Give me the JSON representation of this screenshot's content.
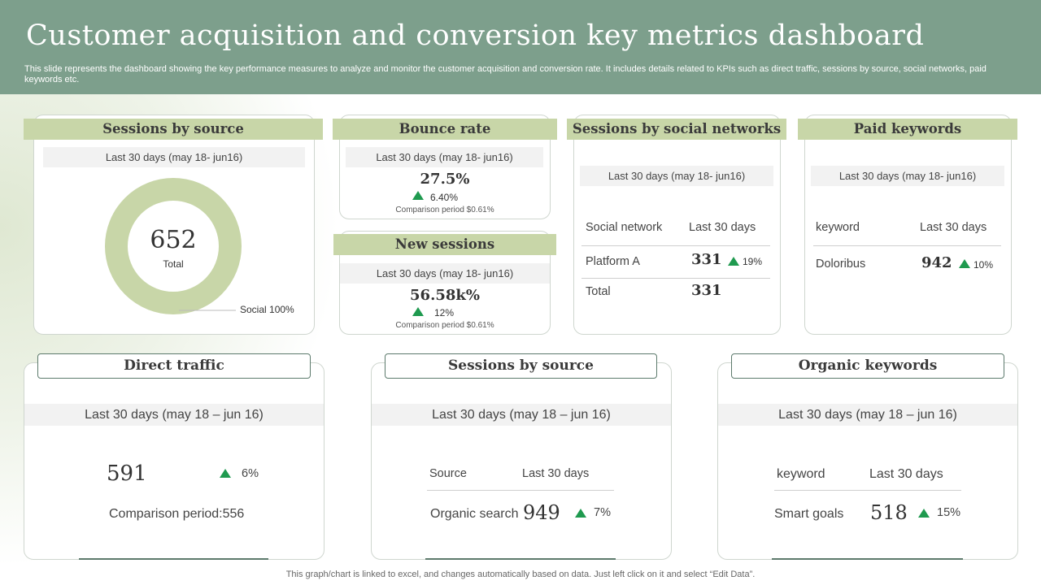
{
  "title": "Customer acquisition and conversion key metrics dashboard",
  "subtitle": "This slide represents the dashboard showing the key performance measures to analyze and monitor the customer acquisition and conversion rate. It includes details related to KPIs such as direct traffic, sessions by source, social networks, paid keywords etc.",
  "sessions_by_source_top": {
    "title": "Sessions by source",
    "period": "Last 30 days (may 18- jun16)",
    "total_value": "652",
    "total_label": "Total",
    "legend": "Social 100%",
    "ring_color": "#c8d6a8",
    "share_social": 1.0
  },
  "bounce_rate": {
    "title": "Bounce rate",
    "period": "Last 30 days (may 18- jun16)",
    "value": "27.5%",
    "change": "6.40%",
    "comparison": "Comparison period $0.61%"
  },
  "new_sessions": {
    "title": "New sessions",
    "period": "Last 30 days (may 18- jun16)",
    "value": "56.58k%",
    "change": "12%",
    "comparison": "Comparison period $0.61%"
  },
  "social_networks": {
    "title": "Sessions by social networks",
    "period": "Last 30 days (may 18- jun16)",
    "col1": "Social network",
    "col2": "Last 30 days",
    "row1_name": "Platform A",
    "row1_value": "331",
    "row1_change": "19%",
    "row2_name": "Total",
    "row2_value": "331"
  },
  "paid_keywords": {
    "title": "Paid keywords",
    "period": "Last 30 days (may 18- jun16)",
    "col1": "keyword",
    "col2": "Last 30 days",
    "row1_name": "Doloribus",
    "row1_value": "942",
    "row1_change": "10%"
  },
  "direct_traffic": {
    "title": "Direct traffic",
    "period": "Last 30 days (may 18 – jun 16)",
    "value": "591",
    "change": "6%",
    "comparison": "Comparison period:556"
  },
  "sessions_by_source_bottom": {
    "title": "Sessions by source",
    "period": "Last 30 days (may 18 – jun 16)",
    "col1": "Source",
    "col2": "Last 30 days",
    "row1_name": "Organic search",
    "row1_value": "949",
    "row1_change": "7%"
  },
  "organic_keywords": {
    "title": "Organic keywords",
    "period": "Last 30 days (may 18 – jun 16)",
    "col1": "keyword",
    "col2": "Last 30 days",
    "row1_name": "Smart goals",
    "row1_value": "518",
    "row1_change": "15%"
  },
  "footer": "This graph/chart is linked to excel,  and changes automatically based on data. Just left click on it and select “Edit Data”.",
  "colors": {
    "header_bg": "#7d9f8c",
    "tab_bg": "#c8d6a8",
    "up_arrow": "#1f9a4f"
  }
}
